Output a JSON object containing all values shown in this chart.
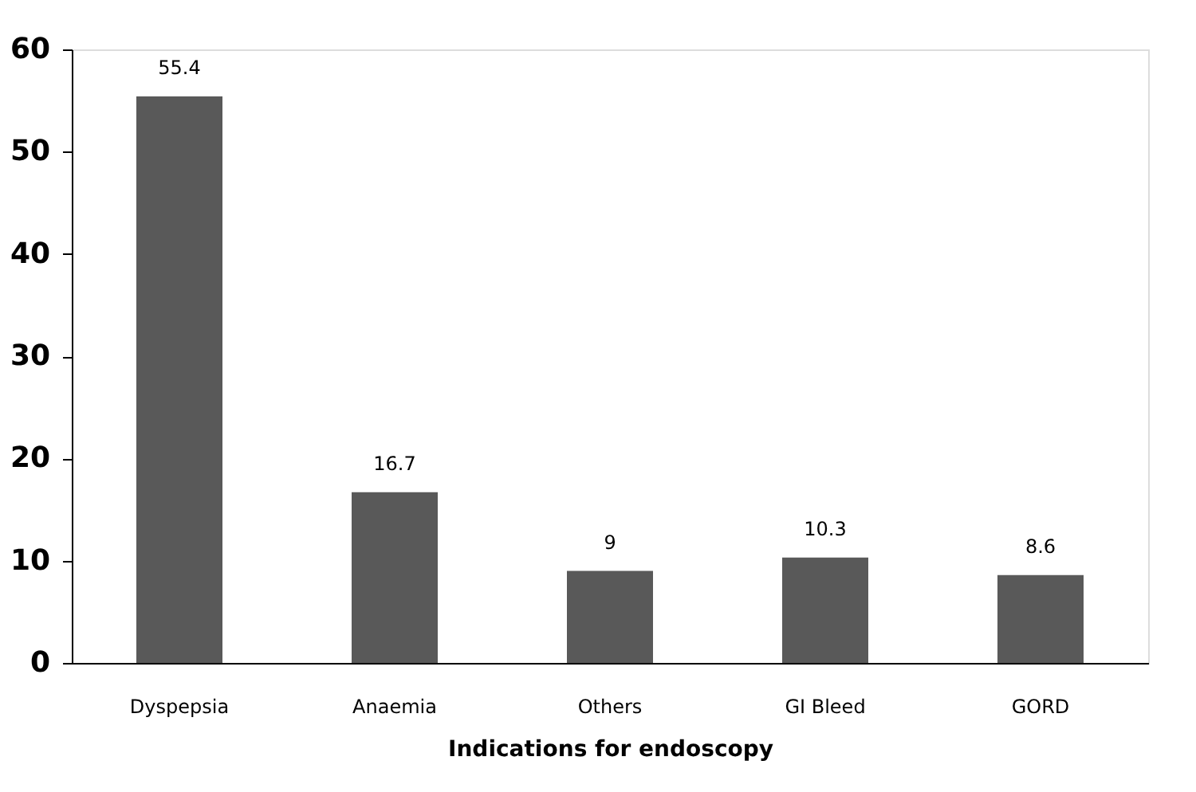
{
  "chart_data": {
    "type": "bar",
    "xlabel": "Indications for endoscopy",
    "categories": [
      "Dyspepsia",
      "Anaemia",
      "Others",
      "GI Bleed",
      "GORD"
    ],
    "values": [
      55.4,
      16.7,
      9,
      10.3,
      8.6
    ],
    "color": "#595959",
    "ylim": [
      0,
      60
    ],
    "yticks": [
      0,
      10,
      20,
      30,
      40,
      50,
      60
    ],
    "data_labels": true
  }
}
